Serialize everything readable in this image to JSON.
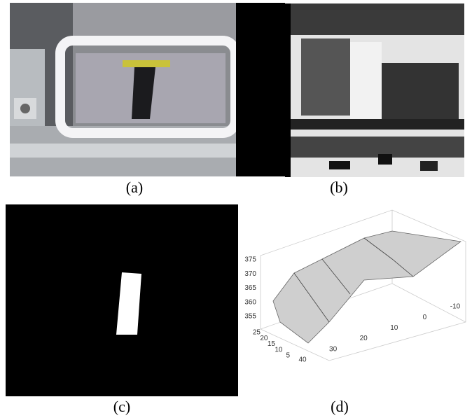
{
  "figure": {
    "panels": [
      {
        "caption": "(a)"
      },
      {
        "caption": "(b)"
      },
      {
        "caption": "(c)"
      },
      {
        "caption": "(d)",
        "zticks": [
          375,
          370,
          365,
          360,
          355
        ],
        "yticks": [
          25,
          20,
          15,
          10,
          5
        ],
        "xticks": [
          40,
          30,
          20,
          10,
          0,
          -10
        ]
      }
    ]
  }
}
